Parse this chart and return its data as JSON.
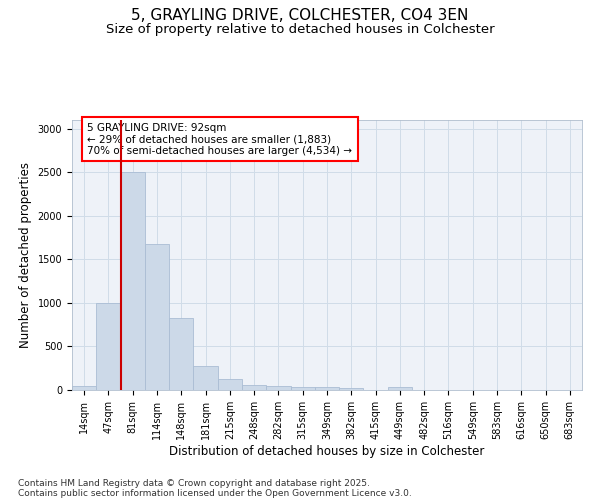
{
  "title_line1": "5, GRAYLING DRIVE, COLCHESTER, CO4 3EN",
  "title_line2": "Size of property relative to detached houses in Colchester",
  "xlabel": "Distribution of detached houses by size in Colchester",
  "ylabel": "Number of detached properties",
  "categories": [
    "14sqm",
    "47sqm",
    "81sqm",
    "114sqm",
    "148sqm",
    "181sqm",
    "215sqm",
    "248sqm",
    "282sqm",
    "315sqm",
    "349sqm",
    "382sqm",
    "415sqm",
    "449sqm",
    "482sqm",
    "516sqm",
    "549sqm",
    "583sqm",
    "616sqm",
    "650sqm",
    "683sqm"
  ],
  "values": [
    50,
    1000,
    2500,
    1680,
    830,
    270,
    130,
    55,
    50,
    40,
    35,
    20,
    2,
    30,
    3,
    2,
    0,
    0,
    0,
    0,
    0
  ],
  "bar_color": "#ccd9e8",
  "bar_edge_color": "#aabdd4",
  "grid_color": "#d0dce8",
  "background_color": "#eef2f8",
  "annotation_text_line1": "5 GRAYLING DRIVE: 92sqm",
  "annotation_text_line2": "← 29% of detached houses are smaller (1,883)",
  "annotation_text_line3": "70% of semi-detached houses are larger (4,534) →",
  "vline_color": "#cc0000",
  "vline_x": 1.5,
  "ylim": [
    0,
    3100
  ],
  "yticks": [
    0,
    500,
    1000,
    1500,
    2000,
    2500,
    3000
  ],
  "footer_line1": "Contains HM Land Registry data © Crown copyright and database right 2025.",
  "footer_line2": "Contains public sector information licensed under the Open Government Licence v3.0.",
  "title_fontsize": 11,
  "subtitle_fontsize": 9.5,
  "axis_label_fontsize": 8.5,
  "tick_fontsize": 7,
  "annot_fontsize": 7.5,
  "footer_fontsize": 6.5
}
